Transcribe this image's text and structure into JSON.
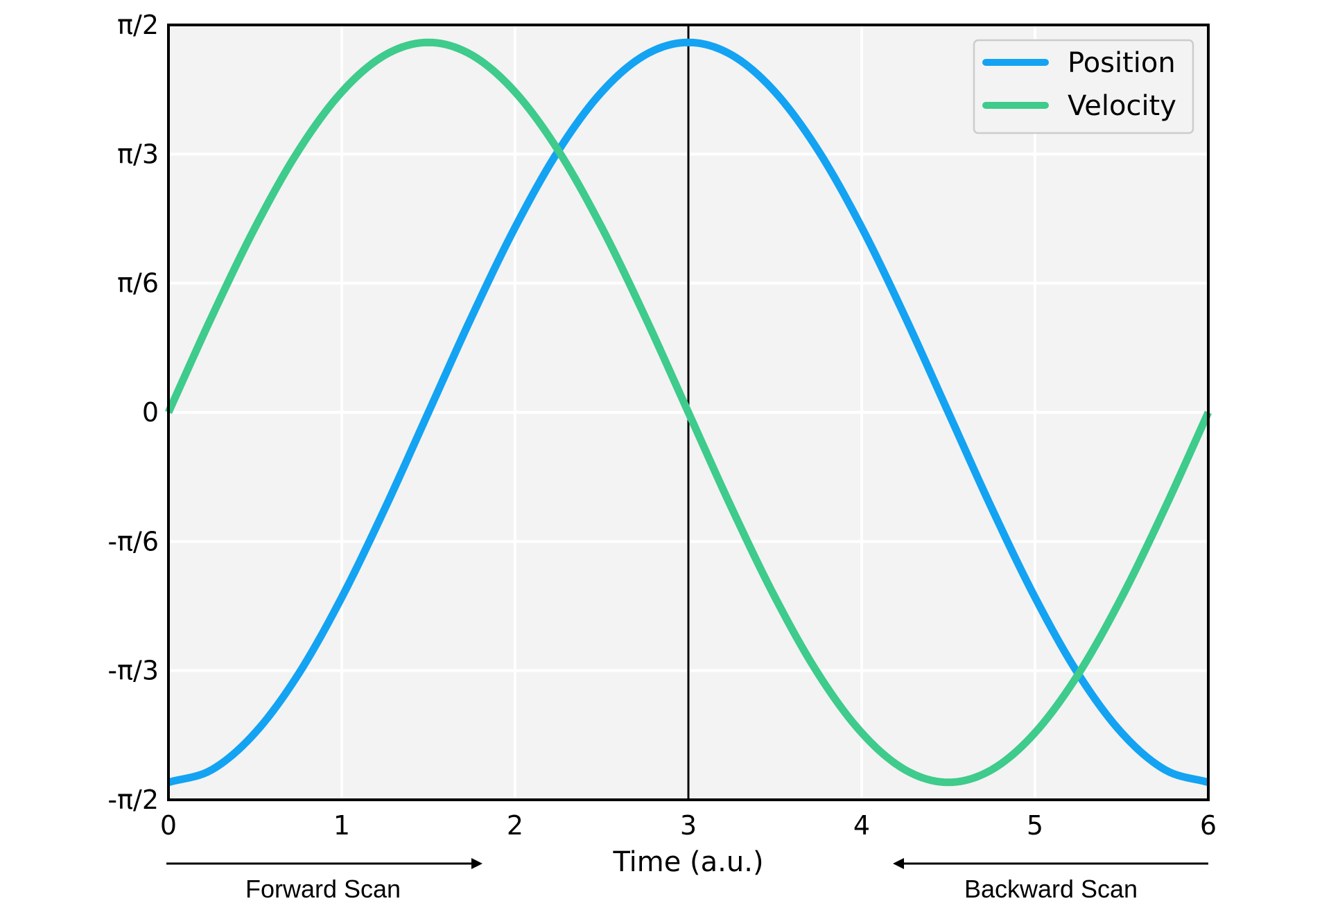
{
  "chart_data": {
    "type": "line",
    "xlabel": "Time (a.u.)",
    "ylabel": "",
    "xlim": [
      0,
      6
    ],
    "ylim": [
      -1.5708,
      1.5708
    ],
    "x_ticks": [
      {
        "value": 0,
        "label": "0"
      },
      {
        "value": 1,
        "label": "1"
      },
      {
        "value": 2,
        "label": "2"
      },
      {
        "value": 3,
        "label": "3"
      },
      {
        "value": 4,
        "label": "4"
      },
      {
        "value": 5,
        "label": "5"
      },
      {
        "value": 6,
        "label": "6"
      }
    ],
    "y_ticks": [
      {
        "value": -1.5708,
        "label": "-π/2"
      },
      {
        "value": -1.0472,
        "label": "-π/3"
      },
      {
        "value": -0.5236,
        "label": "-π/6"
      },
      {
        "value": 0,
        "label": "0"
      },
      {
        "value": 0.5236,
        "label": "π/6"
      },
      {
        "value": 1.0472,
        "label": "π/3"
      },
      {
        "value": 1.5708,
        "label": "π/2"
      }
    ],
    "grid": true,
    "legend_position": "top-right",
    "series": [
      {
        "name": "Position",
        "color": "#13a3f2",
        "x": [
          0,
          0.25,
          0.5,
          0.75,
          1,
          1.25,
          1.5,
          1.75,
          2,
          2.25,
          2.5,
          2.75,
          3,
          3.25,
          3.5,
          3.75,
          4,
          4.25,
          4.5,
          4.75,
          5,
          5.25,
          5.5,
          5.75,
          6
        ],
        "y": [
          -1.5,
          -1.449,
          -1.299,
          -1.061,
          -0.75,
          -0.388,
          0,
          0.388,
          0.75,
          1.061,
          1.299,
          1.449,
          1.5,
          1.449,
          1.299,
          1.061,
          0.75,
          0.388,
          0,
          -0.388,
          -0.75,
          -1.061,
          -1.299,
          -1.449,
          -1.5
        ]
      },
      {
        "name": "Velocity",
        "color": "#3ecb8b",
        "x": [
          0,
          0.25,
          0.5,
          0.75,
          1,
          1.25,
          1.5,
          1.75,
          2,
          2.25,
          2.5,
          2.75,
          3,
          3.25,
          3.5,
          3.75,
          4,
          4.25,
          4.5,
          4.75,
          5,
          5.25,
          5.5,
          5.75,
          6
        ],
        "y": [
          0,
          0.388,
          0.75,
          1.061,
          1.299,
          1.449,
          1.5,
          1.449,
          1.299,
          1.061,
          0.75,
          0.388,
          0,
          -0.388,
          -0.75,
          -1.061,
          -1.299,
          -1.449,
          -1.5,
          -1.449,
          -1.299,
          -1.061,
          -0.75,
          -0.388,
          0
        ]
      }
    ],
    "vertical_line": {
      "x": 3,
      "color": "#000000"
    },
    "annotations": [
      {
        "text": "Forward Scan",
        "arrow": "right",
        "x_range": [
          0,
          1.8
        ]
      },
      {
        "text": "Backward Scan",
        "arrow": "left",
        "x_range": [
          4.2,
          6
        ]
      }
    ]
  },
  "colors": {
    "plot_background": "#f3f3f3",
    "grid": "#ffffff",
    "frame": "#000000",
    "legend_border": "#cccccc"
  }
}
